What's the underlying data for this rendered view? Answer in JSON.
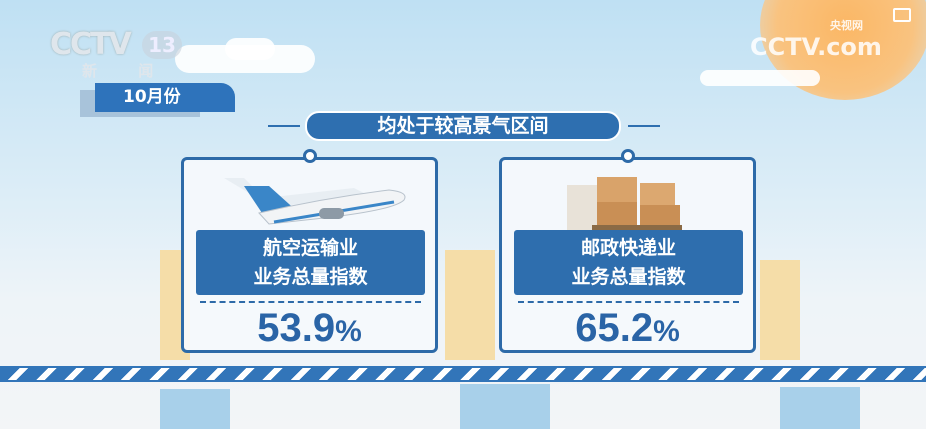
{
  "channel": {
    "logo": "CCTV",
    "number": "13",
    "name": "新 闻"
  },
  "watermark": {
    "logo": "CCTV.com",
    "sub": "央视网"
  },
  "period": "10月份",
  "headline": "均处于较高景气区间",
  "cards": [
    {
      "icon": "airplane-icon",
      "label_line1": "航空运输业",
      "label_line2": "业务总量指数",
      "value": "53.9",
      "unit": "%"
    },
    {
      "icon": "parcel-boxes-icon",
      "label_line1": "邮政快递业",
      "label_line2": "业务总量指数",
      "value": "65.2",
      "unit": "%"
    }
  ],
  "colors": {
    "primary": "#2e6eae",
    "sun": "#fbb765"
  }
}
